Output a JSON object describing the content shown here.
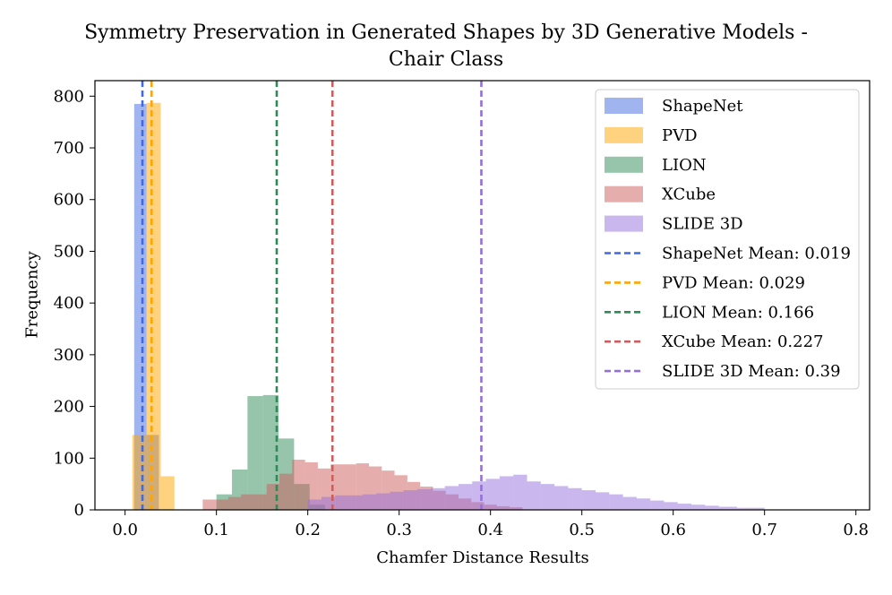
{
  "chart_data": {
    "type": "histogram",
    "title": [
      "Symmetry Preservation in Generated Shapes by 3D Generative Models -",
      "Chair Class"
    ],
    "xlabel": "Chamfer Distance Results",
    "ylabel": "Frequency",
    "xlim": [
      -0.033,
      0.815
    ],
    "ylim": [
      0,
      830
    ],
    "xticks": [
      0.0,
      0.1,
      0.2,
      0.3,
      0.4,
      0.5,
      0.6,
      0.7,
      0.8
    ],
    "xtick_labels": [
      "0.0",
      "0.1",
      "0.2",
      "0.3",
      "0.4",
      "0.5",
      "0.6",
      "0.7",
      "0.8"
    ],
    "yticks": [
      0,
      100,
      200,
      300,
      400,
      500,
      600,
      700,
      800
    ],
    "ytick_labels": [
      "0",
      "100",
      "200",
      "300",
      "400",
      "500",
      "600",
      "700",
      "800"
    ],
    "legend_position": "top-right",
    "series": [
      {
        "name": "ShapeNet",
        "color": "#4169e1",
        "alpha": 0.5,
        "bins": [
          [
            0.01,
            0.0235,
            785
          ],
          [
            0.0235,
            0.037,
            145
          ]
        ]
      },
      {
        "name": "PVD",
        "color": "#ffa500",
        "alpha": 0.5,
        "bins": [
          [
            0.008,
            0.0235,
            145
          ],
          [
            0.0235,
            0.039,
            787
          ],
          [
            0.039,
            0.054,
            65
          ]
        ]
      },
      {
        "name": "LION",
        "color": "#2e8b57",
        "alpha": 0.5,
        "bins": [
          [
            0.1,
            0.117,
            30
          ],
          [
            0.117,
            0.134,
            78
          ],
          [
            0.134,
            0.151,
            220
          ],
          [
            0.151,
            0.168,
            222
          ],
          [
            0.168,
            0.185,
            138
          ],
          [
            0.185,
            0.202,
            50
          ],
          [
            0.202,
            0.219,
            10
          ]
        ]
      },
      {
        "name": "XCube",
        "color": "#cd5c5c",
        "alpha": 0.5,
        "bins": [
          [
            0.085,
            0.099,
            20
          ],
          [
            0.099,
            0.113,
            20
          ],
          [
            0.113,
            0.127,
            25
          ],
          [
            0.127,
            0.141,
            30
          ],
          [
            0.141,
            0.155,
            30
          ],
          [
            0.155,
            0.169,
            50
          ],
          [
            0.169,
            0.183,
            70
          ],
          [
            0.183,
            0.197,
            97
          ],
          [
            0.197,
            0.211,
            92
          ],
          [
            0.211,
            0.225,
            80
          ],
          [
            0.225,
            0.239,
            88
          ],
          [
            0.239,
            0.253,
            88
          ],
          [
            0.253,
            0.267,
            90
          ],
          [
            0.267,
            0.281,
            84
          ],
          [
            0.281,
            0.295,
            76
          ],
          [
            0.295,
            0.309,
            67
          ],
          [
            0.309,
            0.323,
            54
          ],
          [
            0.323,
            0.337,
            45
          ],
          [
            0.337,
            0.351,
            37
          ],
          [
            0.351,
            0.365,
            30
          ],
          [
            0.365,
            0.379,
            22
          ],
          [
            0.379,
            0.393,
            15
          ],
          [
            0.393,
            0.407,
            10
          ],
          [
            0.407,
            0.421,
            7
          ],
          [
            0.421,
            0.435,
            5
          ]
        ]
      },
      {
        "name": "SLIDE 3D",
        "color": "#9370db",
        "alpha": 0.5,
        "bins": [
          [
            0.2,
            0.215,
            20
          ],
          [
            0.215,
            0.23,
            25
          ],
          [
            0.23,
            0.245,
            28
          ],
          [
            0.245,
            0.26,
            28
          ],
          [
            0.26,
            0.275,
            30
          ],
          [
            0.275,
            0.29,
            32
          ],
          [
            0.29,
            0.305,
            35
          ],
          [
            0.305,
            0.32,
            38
          ],
          [
            0.32,
            0.335,
            40
          ],
          [
            0.335,
            0.35,
            42
          ],
          [
            0.35,
            0.365,
            46
          ],
          [
            0.365,
            0.38,
            50
          ],
          [
            0.38,
            0.395,
            55
          ],
          [
            0.395,
            0.41,
            60
          ],
          [
            0.41,
            0.425,
            65
          ],
          [
            0.425,
            0.44,
            68
          ],
          [
            0.44,
            0.455,
            55
          ],
          [
            0.455,
            0.47,
            50
          ],
          [
            0.47,
            0.485,
            46
          ],
          [
            0.485,
            0.5,
            42
          ],
          [
            0.5,
            0.515,
            38
          ],
          [
            0.515,
            0.53,
            34
          ],
          [
            0.53,
            0.545,
            30
          ],
          [
            0.545,
            0.56,
            25
          ],
          [
            0.56,
            0.575,
            22
          ],
          [
            0.575,
            0.59,
            18
          ],
          [
            0.59,
            0.605,
            15
          ],
          [
            0.605,
            0.62,
            12
          ],
          [
            0.62,
            0.635,
            10
          ],
          [
            0.635,
            0.65,
            8
          ],
          [
            0.65,
            0.67,
            6
          ],
          [
            0.67,
            0.7,
            4
          ]
        ]
      }
    ],
    "mean_lines": [
      {
        "label": "ShapeNet Mean: 0.019",
        "value": 0.019,
        "color": "#4169e1"
      },
      {
        "label": "PVD Mean: 0.029",
        "value": 0.029,
        "color": "#ffa500"
      },
      {
        "label": "LION Mean: 0.166",
        "value": 0.166,
        "color": "#2e8b57"
      },
      {
        "label": "XCube Mean: 0.227",
        "value": 0.227,
        "color": "#cd5c5c"
      },
      {
        "label": "SLIDE 3D Mean: 0.39",
        "value": 0.39,
        "color": "#9370db"
      }
    ]
  }
}
